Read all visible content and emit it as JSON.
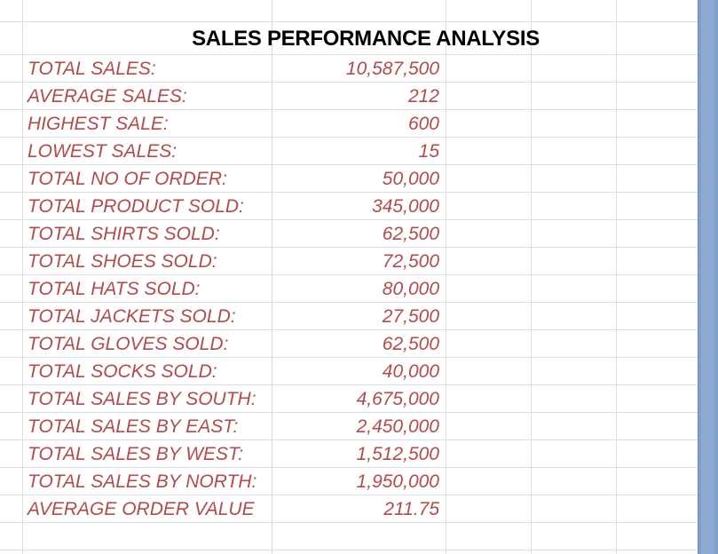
{
  "sheet": {
    "title": "SALES PERFORMANCE ANALYSIS",
    "rows": [
      {
        "label": "TOTAL SALES:",
        "value": "10,587,500"
      },
      {
        "label": "AVERAGE SALES:",
        "value": "212"
      },
      {
        "label": "HIGHEST SALE:",
        "value": "600"
      },
      {
        "label": "LOWEST SALES:",
        "value": "15"
      },
      {
        "label": "TOTAL NO OF ORDER:",
        "value": "50,000"
      },
      {
        "label": "TOTAL PRODUCT SOLD:",
        "value": "345,000"
      },
      {
        "label": "TOTAL SHIRTS SOLD:",
        "value": "62,500"
      },
      {
        "label": "TOTAL SHOES SOLD:",
        "value": "72,500"
      },
      {
        "label": "TOTAL HATS SOLD:",
        "value": "80,000"
      },
      {
        "label": "TOTAL JACKETS SOLD:",
        "value": "27,500"
      },
      {
        "label": "TOTAL GLOVES SOLD:",
        "value": "62,500"
      },
      {
        "label": "TOTAL SOCKS SOLD:",
        "value": "40,000"
      },
      {
        "label": "TOTAL SALES BY SOUTH:",
        "value": "4,675,000"
      },
      {
        "label": "TOTAL SALES BY EAST:",
        "value": "2,450,000"
      },
      {
        "label": "TOTAL SALES BY WEST:",
        "value": "1,512,500"
      },
      {
        "label": "TOTAL SALES BY NORTH:",
        "value": "1,950,000"
      },
      {
        "label": "AVERAGE ORDER VALUE",
        "value": "211.75"
      }
    ]
  },
  "colors": {
    "text_accent": "#b24b4b",
    "grid": "#d9dee6",
    "scrollbar": "#7f9ec8"
  }
}
